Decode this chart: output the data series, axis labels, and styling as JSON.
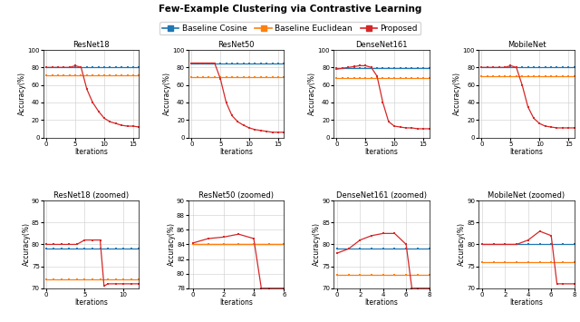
{
  "title": "Few-Example Clustering via Contrastive Learning",
  "legend_labels": [
    "Baseline Cosine",
    "Baseline Euclidean",
    "Proposed"
  ],
  "colors": {
    "cosine": "#1f77b4",
    "euclidean": "#ff7f0e",
    "proposed": "#d62728"
  },
  "subplots_top": [
    {
      "title": "ResNet18",
      "xlabel": "Iterations",
      "ylabel": "Accuracy(%)",
      "ylim": [
        0,
        100
      ],
      "xlim": [
        -0.5,
        16
      ],
      "xticks": [
        0,
        5,
        10,
        15
      ],
      "cosine": {
        "x": [
          0,
          1,
          2,
          3,
          4,
          5,
          6,
          7,
          8,
          9,
          10,
          11,
          12,
          13,
          14,
          15,
          16
        ],
        "y": [
          80,
          80,
          80,
          80,
          80,
          80,
          80,
          80,
          80,
          80,
          80,
          80,
          80,
          80,
          80,
          80,
          80
        ]
      },
      "euclidean": {
        "x": [
          0,
          1,
          2,
          3,
          4,
          5,
          6,
          7,
          8,
          9,
          10,
          11,
          12,
          13,
          14,
          15,
          16
        ],
        "y": [
          71,
          71,
          71,
          71,
          71,
          71,
          71,
          71,
          71,
          71,
          71,
          71,
          71,
          71,
          71,
          71,
          71
        ]
      },
      "proposed": {
        "x": [
          0,
          1,
          2,
          3,
          4,
          5,
          6,
          7,
          8,
          9,
          10,
          11,
          12,
          13,
          14,
          15,
          16
        ],
        "y": [
          80,
          80,
          80,
          80,
          80,
          82,
          80,
          55,
          40,
          30,
          22,
          18,
          16,
          14,
          13,
          13,
          12
        ]
      }
    },
    {
      "title": "ResNet50",
      "xlabel": "Iterations",
      "ylabel": "Accuracy(%)",
      "ylim": [
        0,
        100
      ],
      "xlim": [
        -0.5,
        16
      ],
      "xticks": [
        0,
        5,
        10,
        15
      ],
      "cosine": {
        "x": [
          0,
          1,
          2,
          3,
          4,
          5,
          6,
          7,
          8,
          9,
          10,
          11,
          12,
          13,
          14,
          15,
          16
        ],
        "y": [
          84,
          84,
          84,
          84,
          84,
          84,
          84,
          84,
          84,
          84,
          84,
          84,
          84,
          84,
          84,
          84,
          84
        ]
      },
      "euclidean": {
        "x": [
          0,
          1,
          2,
          3,
          4,
          5,
          6,
          7,
          8,
          9,
          10,
          11,
          12,
          13,
          14,
          15,
          16
        ],
        "y": [
          69,
          69,
          69,
          69,
          69,
          69,
          69,
          69,
          69,
          69,
          69,
          69,
          69,
          69,
          69,
          69,
          69
        ]
      },
      "proposed": {
        "x": [
          0,
          1,
          2,
          3,
          4,
          5,
          6,
          7,
          8,
          9,
          10,
          11,
          12,
          13,
          14,
          15,
          16
        ],
        "y": [
          85,
          85,
          85,
          85,
          85,
          67,
          40,
          25,
          18,
          14,
          11,
          9,
          8,
          7,
          6,
          6,
          6
        ]
      }
    },
    {
      "title": "DenseNet161",
      "xlabel": "Iterations",
      "ylabel": "Accuracy(%)",
      "ylim": [
        0,
        100
      ],
      "xlim": [
        -0.5,
        16
      ],
      "xticks": [
        0,
        5,
        10,
        15
      ],
      "cosine": {
        "x": [
          0,
          1,
          2,
          3,
          4,
          5,
          6,
          7,
          8,
          9,
          10,
          11,
          12,
          13,
          14,
          15,
          16
        ],
        "y": [
          79,
          79,
          79,
          79,
          79,
          79,
          79,
          79,
          79,
          79,
          79,
          79,
          79,
          79,
          79,
          79,
          79
        ]
      },
      "euclidean": {
        "x": [
          0,
          1,
          2,
          3,
          4,
          5,
          6,
          7,
          8,
          9,
          10,
          11,
          12,
          13,
          14,
          15,
          16
        ],
        "y": [
          68,
          68,
          68,
          68,
          68,
          68,
          68,
          68,
          68,
          68,
          68,
          68,
          68,
          68,
          68,
          68,
          68
        ]
      },
      "proposed": {
        "x": [
          0,
          1,
          2,
          3,
          4,
          5,
          6,
          7,
          8,
          9,
          10,
          11,
          12,
          13,
          14,
          15,
          16
        ],
        "y": [
          78,
          79,
          80,
          81,
          82,
          82,
          80,
          70,
          40,
          18,
          13,
          12,
          11,
          11,
          10,
          10,
          10
        ]
      }
    },
    {
      "title": "MobileNet",
      "xlabel": "Iterations",
      "ylabel": "Accuracy(%)",
      "ylim": [
        0,
        100
      ],
      "xlim": [
        -0.5,
        16
      ],
      "xticks": [
        0,
        5,
        10,
        15
      ],
      "cosine": {
        "x": [
          0,
          1,
          2,
          3,
          4,
          5,
          6,
          7,
          8,
          9,
          10,
          11,
          12,
          13,
          14,
          15,
          16
        ],
        "y": [
          80,
          80,
          80,
          80,
          80,
          80,
          80,
          80,
          80,
          80,
          80,
          80,
          80,
          80,
          80,
          80,
          80
        ]
      },
      "euclidean": {
        "x": [
          0,
          1,
          2,
          3,
          4,
          5,
          6,
          7,
          8,
          9,
          10,
          11,
          12,
          13,
          14,
          15,
          16
        ],
        "y": [
          70,
          70,
          70,
          70,
          70,
          70,
          70,
          70,
          70,
          70,
          70,
          70,
          70,
          70,
          70,
          70,
          70
        ]
      },
      "proposed": {
        "x": [
          0,
          1,
          2,
          3,
          4,
          5,
          6,
          7,
          8,
          9,
          10,
          11,
          12,
          13,
          14,
          15,
          16
        ],
        "y": [
          80,
          80,
          80,
          80,
          80,
          82,
          80,
          60,
          35,
          22,
          16,
          13,
          12,
          11,
          11,
          11,
          11
        ]
      }
    }
  ],
  "subplots_bottom": [
    {
      "title": "ResNet18 (zoomed)",
      "xlabel": "Iterations",
      "ylabel": "Accuracy(%)",
      "ylim": [
        70,
        90
      ],
      "xlim": [
        -0.3,
        12
      ],
      "xticks": [
        0,
        5,
        10
      ],
      "yticks": [
        70,
        75,
        80,
        85,
        90
      ],
      "cosine": {
        "x": [
          0,
          1,
          2,
          3,
          4,
          5,
          6,
          7,
          8,
          9,
          10,
          11,
          12
        ],
        "y": [
          79,
          79,
          79,
          79,
          79,
          79,
          79,
          79,
          79,
          79,
          79,
          79,
          79
        ]
      },
      "euclidean": {
        "x": [
          0,
          1,
          2,
          3,
          4,
          5,
          6,
          7,
          8,
          9,
          10,
          11,
          12
        ],
        "y": [
          72,
          72,
          72,
          72,
          72,
          72,
          72,
          72,
          72,
          72,
          72,
          72,
          72
        ]
      },
      "proposed": {
        "x": [
          0,
          1,
          2,
          3,
          4,
          5,
          6,
          7,
          7.5,
          8,
          9,
          10,
          11,
          12
        ],
        "y": [
          80,
          80,
          80,
          80,
          80,
          81,
          81,
          81,
          70.5,
          71,
          71,
          71,
          71,
          71
        ]
      }
    },
    {
      "title": "ResNet50 (zoomed)",
      "xlabel": "Iterations",
      "ylabel": "Accuracy(%)",
      "ylim": [
        78,
        90
      ],
      "xlim": [
        -0.3,
        6
      ],
      "xticks": [
        0,
        2,
        4,
        6
      ],
      "yticks": [
        78,
        80,
        82,
        84,
        86,
        88,
        90
      ],
      "cosine": {
        "x": [
          0,
          1,
          2,
          3,
          4,
          5,
          6
        ],
        "y": [
          84,
          84,
          84,
          84,
          84,
          84,
          84
        ]
      },
      "euclidean": {
        "x": [
          0,
          1,
          2,
          3,
          4,
          5,
          6
        ],
        "y": [
          84,
          84,
          84,
          84,
          84,
          84,
          84
        ]
      },
      "proposed": {
        "x": [
          0,
          1,
          2,
          3,
          4,
          4.5,
          5,
          6
        ],
        "y": [
          84.2,
          84.8,
          85.0,
          85.4,
          84.8,
          78.0,
          78.0,
          78.0
        ]
      }
    },
    {
      "title": "DenseNet161 (zoomed)",
      "xlabel": "Iterations",
      "ylabel": "Accuracy(%)",
      "ylim": [
        70,
        90
      ],
      "xlim": [
        -0.3,
        8
      ],
      "xticks": [
        0,
        2,
        4,
        6,
        8
      ],
      "yticks": [
        70,
        75,
        80,
        85,
        90
      ],
      "cosine": {
        "x": [
          0,
          1,
          2,
          3,
          4,
          5,
          6,
          7,
          8
        ],
        "y": [
          79,
          79,
          79,
          79,
          79,
          79,
          79,
          79,
          79
        ]
      },
      "euclidean": {
        "x": [
          0,
          1,
          2,
          3,
          4,
          5,
          6,
          7,
          8
        ],
        "y": [
          73,
          73,
          73,
          73,
          73,
          73,
          73,
          73,
          73
        ]
      },
      "proposed": {
        "x": [
          0,
          1,
          2,
          3,
          4,
          5,
          6,
          6.5,
          7,
          8
        ],
        "y": [
          78,
          79,
          81,
          82,
          82.5,
          82.5,
          80,
          70,
          70,
          70
        ]
      }
    },
    {
      "title": "MobileNet (zoomed)",
      "xlabel": "Iterations",
      "ylabel": "Accuracy(%)",
      "ylim": [
        70,
        90
      ],
      "xlim": [
        -0.3,
        8
      ],
      "xticks": [
        0,
        2,
        4,
        6,
        8
      ],
      "yticks": [
        70,
        75,
        80,
        85,
        90
      ],
      "cosine": {
        "x": [
          0,
          1,
          2,
          3,
          4,
          5,
          6,
          7,
          8
        ],
        "y": [
          80,
          80,
          80,
          80,
          80,
          80,
          80,
          80,
          80
        ]
      },
      "euclidean": {
        "x": [
          0,
          1,
          2,
          3,
          4,
          5,
          6,
          7,
          8
        ],
        "y": [
          76,
          76,
          76,
          76,
          76,
          76,
          76,
          76,
          76
        ]
      },
      "proposed": {
        "x": [
          0,
          1,
          2,
          3,
          4,
          5,
          6,
          6.5,
          7,
          8
        ],
        "y": [
          80,
          80,
          80,
          80,
          81,
          83,
          82,
          71,
          71,
          71
        ]
      }
    }
  ]
}
